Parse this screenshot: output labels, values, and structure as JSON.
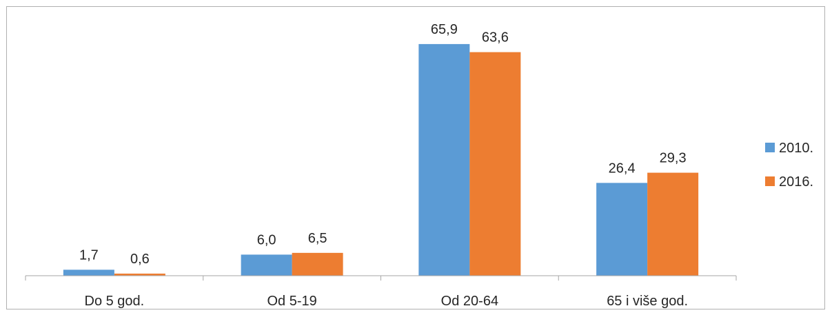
{
  "chart_data": {
    "type": "bar",
    "categories": [
      "Do 5 god.",
      "Od 5-19",
      "Od 20-64",
      "65 i više god."
    ],
    "series": [
      {
        "name": "2010.",
        "values": [
          1.7,
          6.0,
          65.9,
          26.4
        ],
        "labels": [
          "1,7",
          "6,0",
          "65,9",
          "26,4"
        ],
        "color": "#5B9BD5"
      },
      {
        "name": "2016.",
        "values": [
          0.6,
          6.5,
          63.6,
          29.3
        ],
        "labels": [
          "0,6",
          "6,5",
          "63,6",
          "29,3"
        ],
        "color": "#ED7D31"
      }
    ],
    "title": "",
    "xlabel": "",
    "ylabel": "",
    "ylim": [
      0,
      68
    ],
    "grid": false,
    "legend": "right"
  }
}
